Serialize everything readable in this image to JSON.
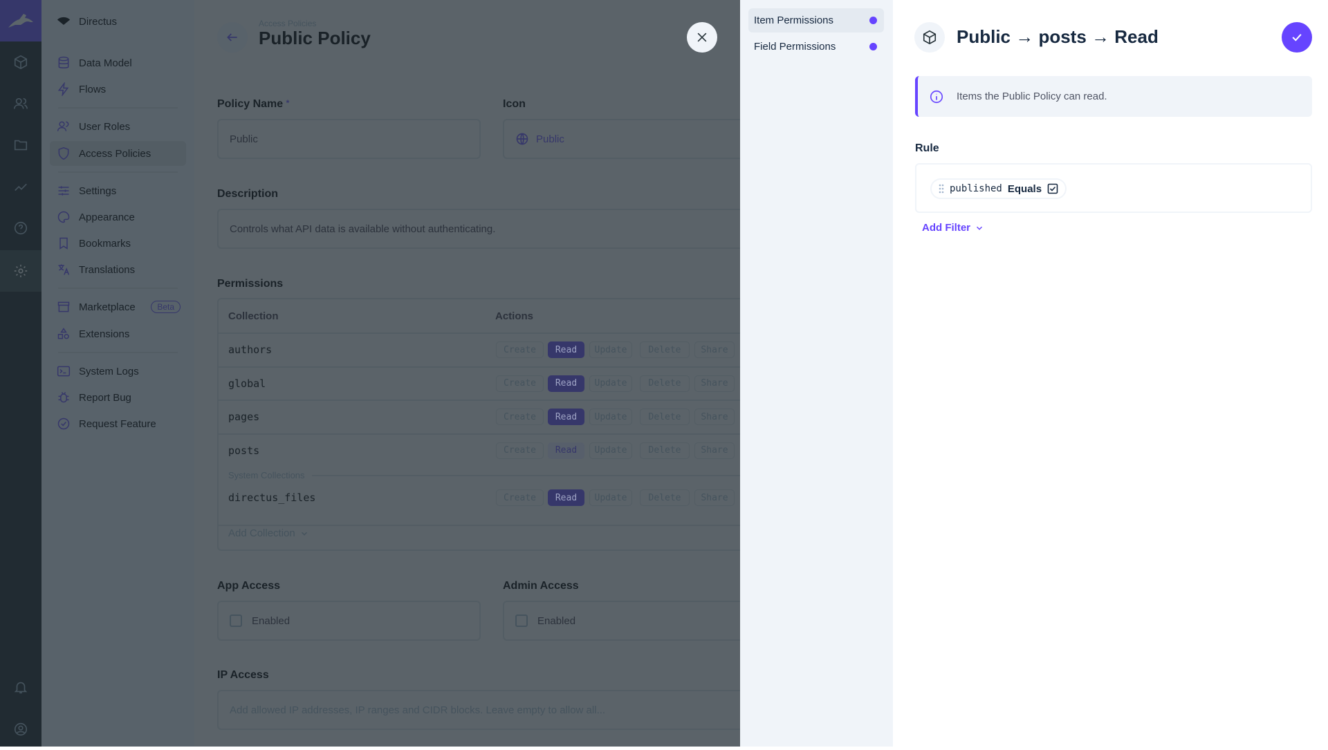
{
  "brand": {
    "accent": "#6644ff"
  },
  "nav": {
    "project": "Directus",
    "items": [
      {
        "label": "Data Model",
        "icon": "database-icon"
      },
      {
        "label": "Flows",
        "icon": "bolt-icon"
      },
      {
        "label": "User Roles",
        "icon": "users-icon"
      },
      {
        "label": "Access Policies",
        "icon": "shield-person-icon"
      },
      {
        "label": "Settings",
        "icon": "sliders-icon"
      },
      {
        "label": "Appearance",
        "icon": "palette-icon"
      },
      {
        "label": "Bookmarks",
        "icon": "bookmark-icon"
      },
      {
        "label": "Translations",
        "icon": "translate-icon"
      },
      {
        "label": "Marketplace",
        "icon": "store-icon",
        "badge": "Beta"
      },
      {
        "label": "Extensions",
        "icon": "shapes-icon"
      },
      {
        "label": "System Logs",
        "icon": "terminal-icon"
      },
      {
        "label": "Report Bug",
        "icon": "bug-icon"
      },
      {
        "label": "Request Feature",
        "icon": "feature-icon"
      }
    ]
  },
  "header": {
    "breadcrumb": "Access Policies",
    "title": "Public Policy"
  },
  "form": {
    "policy_name": {
      "label": "Policy Name",
      "required": "*",
      "value": "Public"
    },
    "icon": {
      "label": "Icon",
      "value": "Public"
    },
    "description": {
      "label": "Description",
      "value": "Controls what API data is available without authenticating."
    },
    "permissions": {
      "label": "Permissions",
      "col_collection": "Collection",
      "col_actions": "Actions",
      "actions": [
        "Create",
        "Read",
        "Update",
        "Delete",
        "Share"
      ],
      "rows": [
        {
          "name": "authors",
          "states": [
            "none",
            "full",
            "none",
            "none",
            "none"
          ]
        },
        {
          "name": "global",
          "states": [
            "none",
            "full",
            "none",
            "none",
            "none"
          ]
        },
        {
          "name": "pages",
          "states": [
            "none",
            "full",
            "none",
            "none",
            "none"
          ]
        },
        {
          "name": "posts",
          "states": [
            "none",
            "partial",
            "none",
            "none",
            "none"
          ]
        }
      ],
      "system_label": "System Collections",
      "system_rows": [
        {
          "name": "directus_files",
          "states": [
            "none",
            "full",
            "none",
            "none",
            "none"
          ]
        }
      ],
      "add_collection": "Add Collection"
    },
    "app_access": {
      "label": "App Access",
      "option": "Enabled",
      "checked": false
    },
    "admin_access": {
      "label": "Admin Access",
      "option": "Enabled",
      "checked": false
    },
    "ip_access": {
      "label": "IP Access",
      "placeholder": "Add allowed IP addresses, IP ranges and CIDR blocks. Leave empty to allow all..."
    }
  },
  "drawer": {
    "nav": [
      {
        "label": "Item Permissions"
      },
      {
        "label": "Field Permissions"
      }
    ],
    "title": "Public → posts → Read",
    "notice": "Items the Public Policy can read.",
    "rule_label": "Rule",
    "rule": {
      "field": "published",
      "operator": "Equals",
      "value_checked": true
    },
    "add_filter": "Add Filter"
  }
}
